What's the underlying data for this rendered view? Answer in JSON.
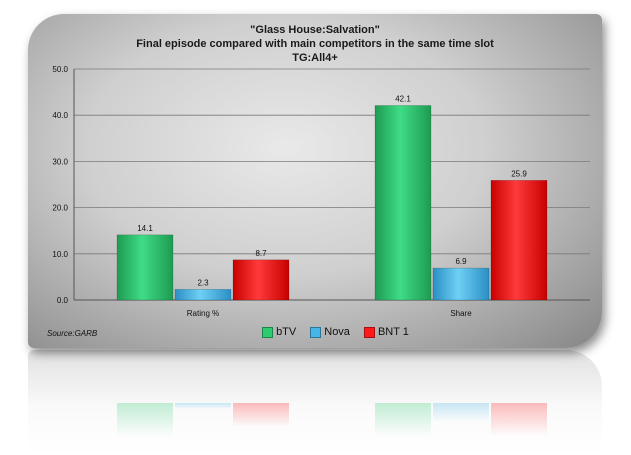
{
  "chart_data": {
    "type": "bar",
    "title_lines": [
      "\"Glass House:Salvation\"",
      "Final episode compared with  main competitors  in the same time slot",
      "TG:All4+"
    ],
    "categories": [
      "Rating %",
      "Share"
    ],
    "series": [
      {
        "name": "bTV",
        "values": [
          14.1,
          42.1
        ],
        "color": "#2ecc71"
      },
      {
        "name": "Nova",
        "values": [
          2.3,
          6.9
        ],
        "color": "#46b6e8"
      },
      {
        "name": "BNT 1",
        "values": [
          8.7,
          25.9
        ],
        "color": "#ff1a1a"
      }
    ],
    "ylim": [
      0,
      50
    ],
    "yticks": [
      "0.0",
      "10.0",
      "20.0",
      "30.0",
      "40.0",
      "50.0"
    ],
    "grid": true,
    "legend_position": "bottom",
    "source": "Source:GARB"
  }
}
